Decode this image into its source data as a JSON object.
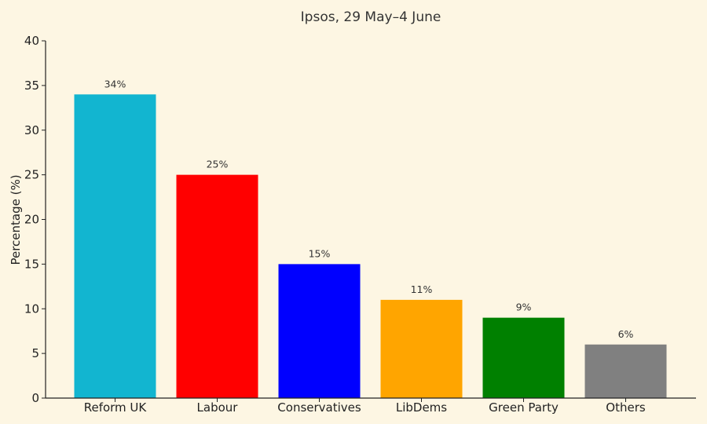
{
  "chart_data": {
    "type": "bar",
    "title": "Ipsos, 29 May–4 June",
    "xlabel": "",
    "ylabel": "Percentage (%)",
    "ylim": [
      0,
      40
    ],
    "yticks": [
      0,
      5,
      10,
      15,
      20,
      25,
      30,
      35,
      40
    ],
    "grid": false,
    "categories": [
      "Reform UK",
      "Labour",
      "Conservatives",
      "LibDems",
      "Green Party",
      "Others"
    ],
    "values": [
      34,
      25,
      15,
      11,
      9,
      6
    ],
    "data_labels": [
      "34%",
      "25%",
      "15%",
      "11%",
      "9%",
      "6%"
    ],
    "colors": [
      "#12b5d0",
      "#ff0000",
      "#0000ff",
      "#ffa500",
      "#008000",
      "#808080"
    ]
  }
}
